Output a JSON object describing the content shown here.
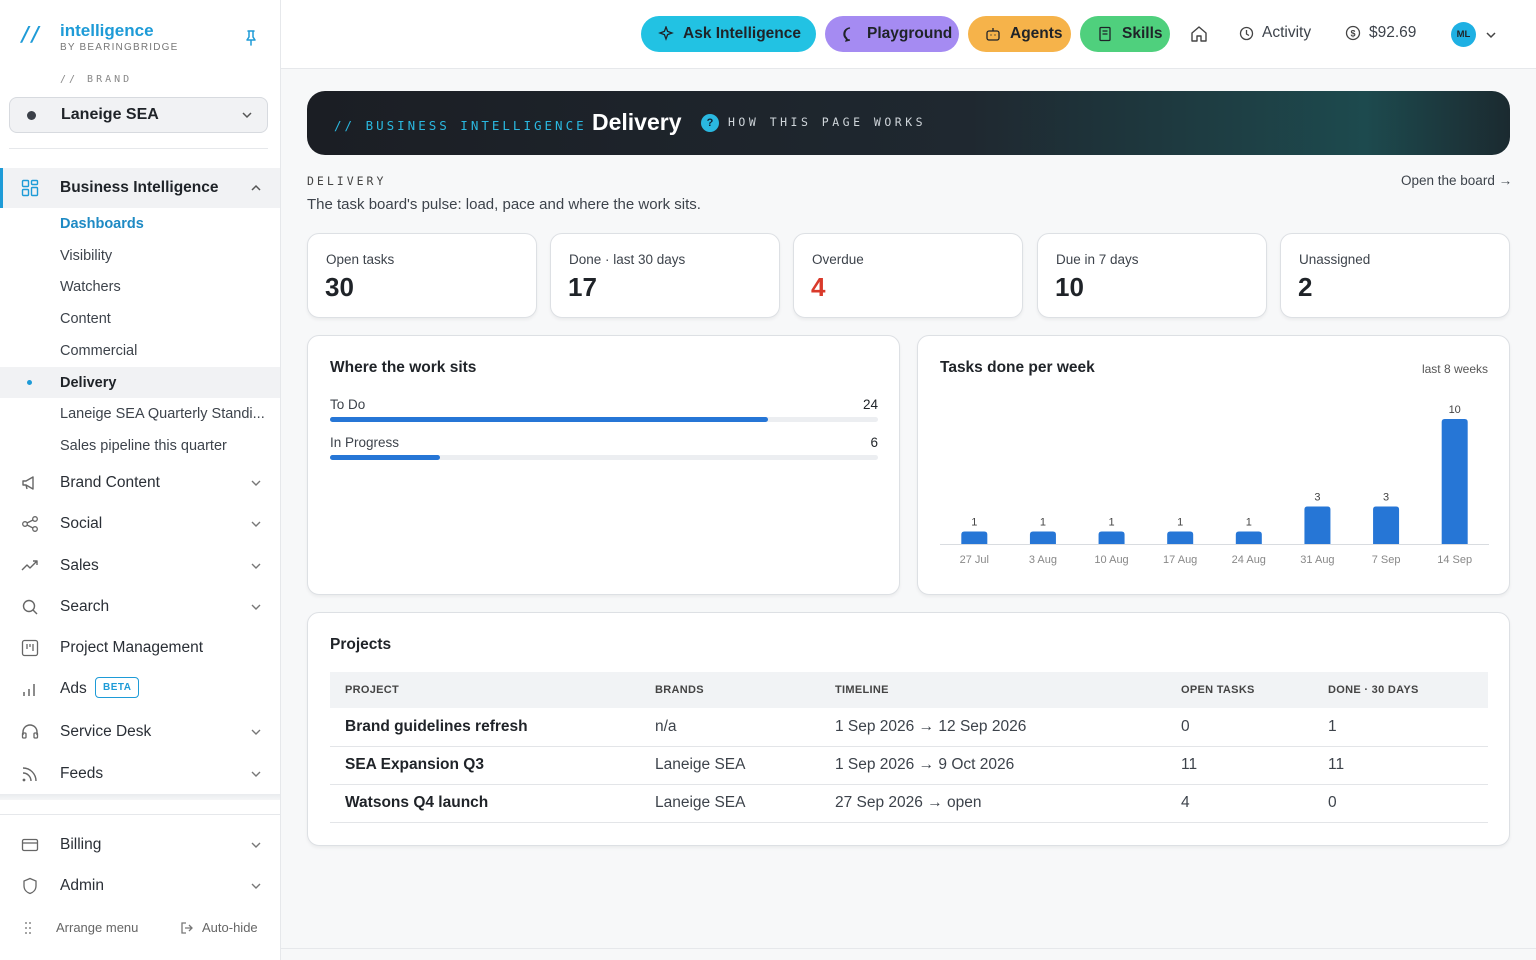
{
  "brand_app": {
    "mark": "//",
    "name": "intelligence",
    "sub": "BY BEARINGBRIDGE"
  },
  "sidebar": {
    "brand_label": "// BRAND",
    "brand_value": "Laneige SEA",
    "bi_label": "Business Intelligence",
    "sub_items": [
      "Dashboards",
      "Visibility",
      "Watchers",
      "Content",
      "Commercial",
      "Delivery",
      "Laneige SEA Quarterly Standi...",
      "Sales pipeline this quarter"
    ],
    "nav": [
      "Brand Content",
      "Social",
      "Sales",
      "Search",
      "Project Management",
      "Ads",
      "Service Desk",
      "Feeds"
    ],
    "ads_badge": "BETA",
    "bottom": [
      "Billing",
      "Admin"
    ],
    "arrange": "Arrange menu",
    "autohide": "Auto-hide"
  },
  "topbar": {
    "ask": "Ask Intelligence",
    "playground": "Playground",
    "agents": "Agents",
    "skills": "Skills",
    "activity": "Activity",
    "balance": "$92.69",
    "avatar": "ML"
  },
  "banner": {
    "kicker": "// BUSINESS INTELLIGENCE",
    "title": "Delivery",
    "help_icon": "?",
    "help": "HOW THIS PAGE WORKS"
  },
  "section": {
    "kicker": "DELIVERY",
    "description": "The task board's pulse: load, pace and where the work sits.",
    "open_board": "Open the board →"
  },
  "kpis": [
    {
      "label": "Open tasks",
      "value": "30"
    },
    {
      "label": "Done · last 30 days",
      "value": "17"
    },
    {
      "label": "Overdue",
      "value": "4",
      "color": "#d93a2b"
    },
    {
      "label": "Due in 7 days",
      "value": "10"
    },
    {
      "label": "Unassigned",
      "value": "2"
    }
  ],
  "work": {
    "title": "Where the work sits",
    "total": 30,
    "rows": [
      {
        "label": "To Do",
        "count": 24
      },
      {
        "label": "In Progress",
        "count": 6
      }
    ]
  },
  "chart": {
    "title": "Tasks done per week",
    "subtitle": "last 8 weeks"
  },
  "chart_data": {
    "type": "bar",
    "title": "Tasks done per week",
    "categories": [
      "27 Jul",
      "3 Aug",
      "10 Aug",
      "17 Aug",
      "24 Aug",
      "31 Aug",
      "7 Sep",
      "14 Sep"
    ],
    "values": [
      1,
      1,
      1,
      1,
      1,
      3,
      3,
      10
    ],
    "ylim": [
      0,
      10
    ],
    "grid": false,
    "color": "#2676d6"
  },
  "projects": {
    "title": "Projects",
    "headers": [
      "PROJECT",
      "BRANDS",
      "TIMELINE",
      "OPEN TASKS",
      "DONE · 30 DAYS"
    ],
    "rows": [
      [
        "Brand guidelines refresh",
        "n/a",
        "1 Sep 2026 → 12 Sep 2026",
        "0",
        "1"
      ],
      [
        "SEA Expansion Q3",
        "Laneige SEA",
        "1 Sep 2026 → 9 Oct 2026",
        "11",
        "11"
      ],
      [
        "Watsons Q4 launch",
        "Laneige SEA",
        "27 Sep 2026 → open",
        "4",
        "0"
      ]
    ]
  }
}
